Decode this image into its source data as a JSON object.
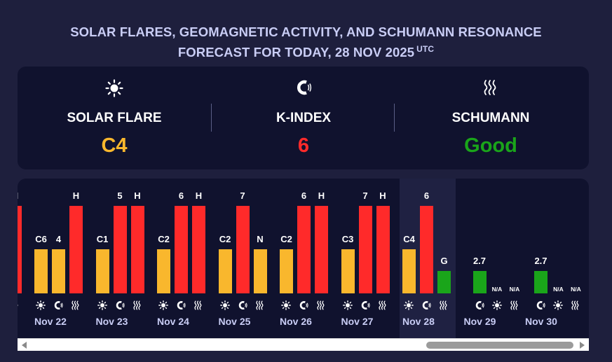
{
  "header": {
    "title_line1": "SOLAR FLARES, GEOMAGNETIC ACTIVITY, AND SCHUMANN RESONANCE",
    "title_line2": "FORECAST FOR TODAY, 28 NOV 2025",
    "title_tz": "UTC"
  },
  "summary": [
    {
      "label": "SOLAR FLARE",
      "value": "C4",
      "icon": "sun-icon",
      "color": "#f9b72d"
    },
    {
      "label": "K-INDEX",
      "value": "6",
      "icon": "magnet-icon",
      "color": "#ff2a2a"
    },
    {
      "label": "SCHUMANN",
      "value": "Good",
      "icon": "waves-icon",
      "color": "#1aa51a"
    }
  ],
  "colors": {
    "red": "#ff2a2a",
    "yellow": "#f9b72d",
    "green": "#1aa51a",
    "panel": "#10122e",
    "background": "#1e1f3d",
    "title": "#c9cdf5"
  },
  "timeline": {
    "partial_left_label": "H",
    "days": [
      {
        "date": "Nov 22",
        "flare": "C6",
        "kindex": "4",
        "schumann": "H"
      },
      {
        "date": "Nov 23",
        "flare": "C1",
        "kindex": "5",
        "schumann": "H"
      },
      {
        "date": "Nov 24",
        "flare": "C2",
        "kindex": "6",
        "schumann": "H"
      },
      {
        "date": "Nov 25",
        "flare": "C2",
        "kindex": "7",
        "schumann": "N"
      },
      {
        "date": "Nov 26",
        "flare": "C2",
        "kindex": "6",
        "schumann": "H"
      },
      {
        "date": "Nov 27",
        "flare": "C3",
        "kindex": "7",
        "schumann": "H"
      },
      {
        "date": "Nov 28",
        "flare": "C4",
        "kindex": "6",
        "schumann": "G",
        "today": true
      },
      {
        "date": "Nov 29",
        "kindex": "2.7",
        "flare": "N/A",
        "schumann": "N/A",
        "forecast": true
      },
      {
        "date": "Nov 30",
        "kindex": "2.7",
        "flare": "N/A",
        "schumann": "N/A",
        "forecast": true
      }
    ]
  }
}
